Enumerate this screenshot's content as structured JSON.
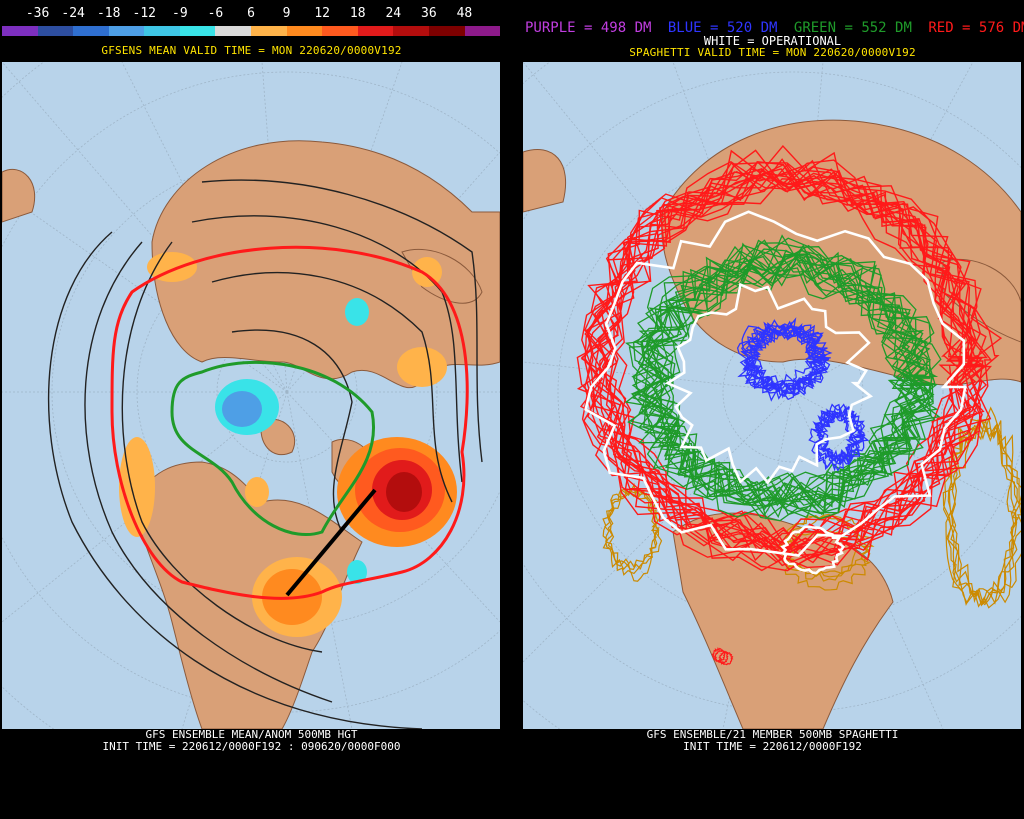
{
  "left_panel": {
    "scale_ticks": [
      "-36",
      "-24",
      "-18",
      "-12",
      "-9",
      "-6",
      "6",
      "9",
      "12",
      "18",
      "24",
      "36",
      "48"
    ],
    "scale_colors": [
      "#7d2fbf",
      "#2d4ea0",
      "#2f6fd0",
      "#4e9fe6",
      "#3fc6e6",
      "#39e3e8",
      "#d9d9d9",
      "#ffb34a",
      "#ff8a1f",
      "#ff5a1f",
      "#e11b1b",
      "#b30d0d",
      "#7d0000",
      "#8d1a8a"
    ],
    "valid_time": "GFSENS MEAN VALID TIME = MON 220620/0000V192",
    "footer_line1": "GFS ENSEMBLE MEAN/ANOM 500MB HGT",
    "footer_line2": "INIT TIME = 220612/0000F192 : 090620/0000F000"
  },
  "right_panel": {
    "legend": {
      "purple": "PURPLE = 498 DM",
      "blue": "BLUE = 520 DM",
      "green": "GREEN = 552 DM",
      "red": "RED = 576 DM",
      "white": "WHITE = OPERATIONAL"
    },
    "colors": {
      "purple": "#c13ee0",
      "blue": "#2f35ff",
      "green": "#1f9b2a",
      "red": "#ff1a1a",
      "white": "#ffffff"
    },
    "valid_time": "SPAGHETTI VALID TIME = MON 220620/0000V192",
    "footer_line1": "GFS ENSEMBLE/21 MEMBER 500MB SPAGHETTI",
    "footer_line2": "INIT TIME = 220612/0000F192"
  }
}
